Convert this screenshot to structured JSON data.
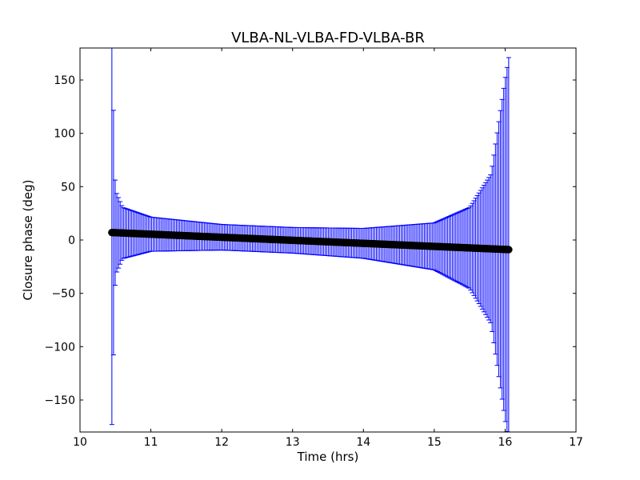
{
  "chart_data": {
    "type": "scatter",
    "title": "VLBA-NL-VLBA-FD-VLBA-BR",
    "xlabel": "Time (hrs)",
    "ylabel": "Closure phase (deg)",
    "xlim": [
      10,
      17
    ],
    "ylim": [
      -180,
      180
    ],
    "x_ticks": [
      10,
      11,
      12,
      13,
      14,
      15,
      16,
      17
    ],
    "x_tick_labels": [
      "10",
      "11",
      "12",
      "13",
      "14",
      "15",
      "16",
      "17"
    ],
    "y_ticks": [
      150,
      100,
      50,
      0,
      -50,
      -100,
      -150
    ],
    "y_tick_labels": [
      "150",
      "100",
      "50",
      "0",
      "−50",
      "−100",
      "−150"
    ],
    "grid": false,
    "legend": "none",
    "colors": {
      "errorbar": "#0000ff",
      "points": "#000000"
    },
    "series": [
      {
        "marker": "circle",
        "error_bars": "symmetric",
        "x_start": 10.45,
        "x_end": 16.05,
        "n_points": 241,
        "y_start": 7,
        "y_end": -9,
        "points_sampled": [
          {
            "x": 10.45,
            "y": 7,
            "err": 180
          },
          {
            "x": 10.5,
            "y": 6.8,
            "err": 40
          },
          {
            "x": 10.6,
            "y": 6.4,
            "err": 24
          },
          {
            "x": 11.0,
            "y": 5.4,
            "err": 16
          },
          {
            "x": 12.0,
            "y": 2.6,
            "err": 12
          },
          {
            "x": 13.0,
            "y": -0.3,
            "err": 12
          },
          {
            "x": 14.0,
            "y": -3.1,
            "err": 14
          },
          {
            "x": 15.0,
            "y": -5.9,
            "err": 22
          },
          {
            "x": 15.5,
            "y": -7.4,
            "err": 38
          },
          {
            "x": 15.8,
            "y": -8.2,
            "err": 70
          },
          {
            "x": 16.0,
            "y": -8.8,
            "err": 160
          },
          {
            "x": 16.05,
            "y": -9,
            "err": 180
          }
        ]
      }
    ]
  }
}
